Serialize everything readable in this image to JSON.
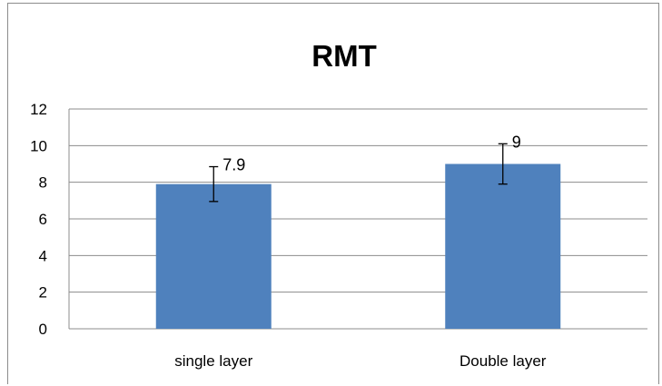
{
  "chart_data": {
    "type": "bar",
    "title": "RMT",
    "categories": [
      "single layer",
      "Double layer"
    ],
    "values": [
      7.9,
      9
    ],
    "error": [
      0.95,
      1.1
    ],
    "data_labels": [
      "7.9",
      "9"
    ],
    "ylim": [
      0,
      12
    ],
    "yticks": [
      "0",
      "2",
      "4",
      "6",
      "8",
      "10",
      "12"
    ],
    "grid": true,
    "legend": "none",
    "bar_color": "#4f81bd"
  }
}
